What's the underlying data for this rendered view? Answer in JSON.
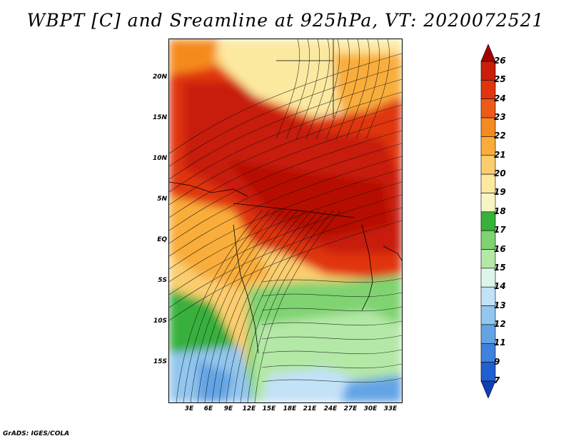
{
  "title": "WBPT [C] and Sreamline at 925hPa, VT: 2020072521",
  "credit": "GrADS: IGES/COLA",
  "map": {
    "y_ticks": [
      "20N",
      "15N",
      "10N",
      "5N",
      "EQ",
      "5S",
      "10S",
      "15S"
    ],
    "x_ticks": [
      "3E",
      "6E",
      "9E",
      "12E",
      "15E",
      "18E",
      "21E",
      "24E",
      "27E",
      "30E",
      "33E"
    ]
  },
  "colorbar": {
    "labels": [
      "26",
      "25",
      "24",
      "23",
      "22",
      "21",
      "20",
      "19",
      "18",
      "17",
      "16",
      "15",
      "14",
      "13",
      "12",
      "11",
      "9",
      "7"
    ],
    "colors": [
      "#a50000",
      "#c81e0a",
      "#e0350f",
      "#ee5a1a",
      "#f58a1e",
      "#f9ad3b",
      "#fbcd6e",
      "#fce9a0",
      "#f8f5c4",
      "#38b03c",
      "#7fd371",
      "#b4e8a6",
      "#def6ea",
      "#c3e1f7",
      "#92c6ee",
      "#64a4e5",
      "#3f82de",
      "#1f5fcf",
      "#0f3fb8"
    ]
  }
}
